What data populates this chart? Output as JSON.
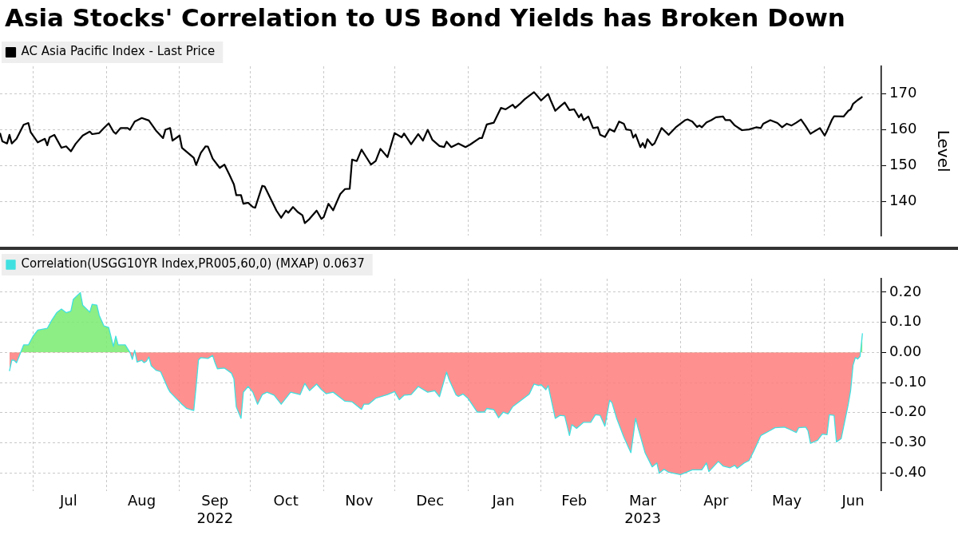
{
  "chart_data": [
    {
      "type": "line",
      "title": "Asia Stocks' Correlation to US Bond Yields has Broken Down",
      "ylabel": "Level",
      "legend": "top left",
      "grid": true,
      "marker": "none",
      "tick_labels": "y",
      "xlim": [
        "2022-06-17",
        "2023-06-25"
      ],
      "xticks": [
        {
          "value": "2022-07-01",
          "label": null
        },
        {
          "value": "2022-08-01",
          "label": null
        },
        {
          "value": "2022-09-01",
          "label": null
        },
        {
          "value": "2022-10-01",
          "label": null
        },
        {
          "value": "2022-11-01",
          "label": null
        },
        {
          "value": "2022-12-01",
          "label": null
        },
        {
          "value": "2023-01-01",
          "label": null
        },
        {
          "value": "2023-02-01",
          "label": null
        },
        {
          "value": "2023-03-01",
          "label": null
        },
        {
          "value": "2023-04-01",
          "label": null
        },
        {
          "value": "2023-05-01",
          "label": null
        },
        {
          "value": "2023-06-01",
          "label": null
        }
      ],
      "ylim": [
        130.5,
        177.7
      ],
      "yticks": [
        140,
        150,
        160,
        170
      ],
      "series": [
        {
          "name": "AC Asia Pacific Index - Last Price",
          "color": "#000000",
          "x": [
            "2022-06-17",
            "2022-06-18",
            "2022-06-20",
            "2022-06-21",
            "2022-06-22",
            "2022-06-24",
            "2022-06-27",
            "2022-06-29",
            "2022-06-30",
            "2022-07-03",
            "2022-07-06",
            "2022-07-07",
            "2022-07-08",
            "2022-07-10",
            "2022-07-13",
            "2022-07-15",
            "2022-07-17",
            "2022-07-19",
            "2022-07-22",
            "2022-07-25",
            "2022-07-26",
            "2022-07-29",
            "2022-07-31",
            "2022-08-02",
            "2022-08-04",
            "2022-08-05",
            "2022-08-07",
            "2022-08-10",
            "2022-08-11",
            "2022-08-13",
            "2022-08-16",
            "2022-08-19",
            "2022-08-22",
            "2022-08-25",
            "2022-08-26",
            "2022-08-28",
            "2022-08-29",
            "2022-09-01",
            "2022-09-02",
            "2022-09-07",
            "2022-09-08",
            "2022-09-10",
            "2022-09-12",
            "2022-09-13",
            "2022-09-15",
            "2022-09-18",
            "2022-09-20",
            "2022-09-22",
            "2022-09-24",
            "2022-09-25",
            "2022-09-27",
            "2022-09-28",
            "2022-09-30",
            "2022-10-02",
            "2022-10-03",
            "2022-10-06",
            "2022-10-07",
            "2022-10-12",
            "2022-10-14",
            "2022-10-16",
            "2022-10-17",
            "2022-10-19",
            "2022-10-21",
            "2022-10-23",
            "2022-10-24",
            "2022-10-26",
            "2022-10-29",
            "2022-10-31",
            "2022-11-01",
            "2022-11-03",
            "2022-11-05",
            "2022-11-08",
            "2022-11-10",
            "2022-11-12",
            "2022-11-13",
            "2022-11-15",
            "2022-11-17",
            "2022-11-19",
            "2022-11-21",
            "2022-11-23",
            "2022-11-25",
            "2022-11-28",
            "2022-12-01",
            "2022-12-04",
            "2022-12-05",
            "2022-12-08",
            "2022-12-11",
            "2022-12-13",
            "2022-12-15",
            "2022-12-17",
            "2022-12-20",
            "2022-12-22",
            "2022-12-23",
            "2022-12-25",
            "2022-12-28",
            "2022-12-31",
            "2023-01-02",
            "2023-01-06",
            "2023-01-07",
            "2023-01-09",
            "2023-01-12",
            "2023-01-15",
            "2023-01-17",
            "2023-01-20",
            "2023-01-21",
            "2023-01-23",
            "2023-01-25",
            "2023-01-29",
            "2023-02-01",
            "2023-02-04",
            "2023-02-05",
            "2023-02-07",
            "2023-02-09",
            "2023-02-11",
            "2023-02-13",
            "2023-02-15",
            "2023-02-17",
            "2023-02-18",
            "2023-02-19",
            "2023-02-21",
            "2023-02-23",
            "2023-02-25",
            "2023-02-26",
            "2023-02-28",
            "2023-03-02",
            "2023-03-04",
            "2023-03-06",
            "2023-03-08",
            "2023-03-09",
            "2023-03-11",
            "2023-03-12",
            "2023-03-13",
            "2023-03-15",
            "2023-03-16",
            "2023-03-17",
            "2023-03-18",
            "2023-03-20",
            "2023-03-21",
            "2023-03-24",
            "2023-03-27",
            "2023-03-30",
            "2023-04-03",
            "2023-04-04",
            "2023-04-06",
            "2023-04-08",
            "2023-04-09",
            "2023-04-10",
            "2023-04-12",
            "2023-04-14",
            "2023-04-16",
            "2023-04-19",
            "2023-04-20",
            "2023-04-22",
            "2023-04-24",
            "2023-04-27",
            "2023-04-30",
            "2023-05-03",
            "2023-05-05",
            "2023-05-06",
            "2023-05-09",
            "2023-05-12",
            "2023-05-14",
            "2023-05-16",
            "2023-05-18",
            "2023-05-20",
            "2023-05-22",
            "2023-05-24",
            "2023-05-26",
            "2023-05-30",
            "2023-06-01",
            "2023-06-02",
            "2023-06-04",
            "2023-06-05",
            "2023-06-09",
            "2023-06-11",
            "2023-06-12",
            "2023-06-13",
            "2023-06-15",
            "2023-06-17"
          ],
          "values": [
            159.1,
            156.8,
            156.2,
            158.6,
            156.2,
            157.5,
            161.4,
            161.9,
            159.3,
            156.5,
            157.5,
            155.7,
            157.9,
            158.6,
            155.0,
            155.4,
            154.0,
            156.1,
            158.4,
            159.5,
            158.8,
            159.1,
            160.5,
            161.8,
            159.5,
            158.9,
            160.5,
            160.5,
            160.0,
            162.3,
            163.3,
            162.6,
            159.8,
            157.7,
            160.0,
            160.5,
            157.0,
            158.4,
            155.0,
            152.2,
            150.2,
            153.6,
            155.4,
            155.3,
            152.0,
            149.4,
            150.3,
            147.6,
            144.8,
            141.8,
            141.8,
            139.4,
            139.7,
            138.5,
            138.3,
            144.4,
            144.2,
            137.5,
            135.5,
            137.5,
            136.9,
            138.5,
            137.1,
            136.2,
            134.0,
            135.2,
            137.5,
            135.2,
            135.7,
            139.4,
            137.6,
            142.1,
            143.5,
            143.6,
            151.7,
            151.3,
            154.5,
            152.4,
            150.3,
            151.3,
            154.7,
            152.4,
            159.1,
            157.9,
            159.0,
            156.0,
            158.8,
            157.0,
            160.0,
            157.2,
            155.5,
            155.2,
            156.7,
            155.2,
            156.2,
            155.2,
            155.9,
            157.7,
            157.7,
            161.5,
            162.0,
            166.1,
            165.7,
            167.0,
            166.1,
            167.2,
            168.5,
            170.5,
            168.2,
            170.0,
            168.3,
            165.3,
            166.5,
            167.6,
            165.5,
            165.7,
            163.5,
            164.4,
            162.7,
            163.7,
            160.5,
            160.7,
            158.6,
            158.0,
            160.2,
            159.5,
            162.3,
            161.7,
            160.1,
            159.9,
            157.8,
            158.7,
            155.2,
            156.3,
            155.0,
            157.4,
            155.7,
            156.2,
            160.5,
            158.6,
            160.7,
            162.7,
            162.9,
            162.3,
            160.8,
            161.2,
            160.7,
            162.1,
            162.7,
            163.5,
            163.7,
            162.7,
            162.7,
            161.2,
            159.9,
            160.1,
            160.7,
            160.5,
            161.7,
            162.7,
            161.9,
            160.7,
            161.7,
            161.2,
            162.0,
            162.9,
            161.0,
            158.9,
            160.5,
            158.4,
            159.7,
            162.7,
            163.8,
            163.7,
            165.3,
            165.7,
            167.2,
            168.3,
            169.2
          ]
        }
      ]
    },
    {
      "type": "area",
      "legend": "top left",
      "grid": true,
      "marker": "none",
      "xlim": [
        "2022-06-17",
        "2023-06-25"
      ],
      "xticks": [
        {
          "value": "2022-07-01",
          "label": null
        },
        {
          "value": "2022-08-01",
          "label": null
        },
        {
          "value": "2022-09-01",
          "label": null
        },
        {
          "value": "2022-10-01",
          "label": null
        },
        {
          "value": "2022-11-01",
          "label": null
        },
        {
          "value": "2022-12-01",
          "label": null
        },
        {
          "value": "2023-01-01",
          "label": null
        },
        {
          "value": "2023-02-01",
          "label": null
        },
        {
          "value": "2023-03-01",
          "label": null
        },
        {
          "value": "2023-04-01",
          "label": null
        },
        {
          "value": "2023-05-01",
          "label": null
        },
        {
          "value": "2023-06-01",
          "label": null
        },
        {
          "value": "2022-07-16",
          "label": "Jul"
        },
        {
          "value": "2022-08-16",
          "label": "Aug"
        },
        {
          "value": "2022-09-16",
          "label": "Sep\n2022"
        },
        {
          "value": "2022-10-16",
          "label": "Oct"
        },
        {
          "value": "2022-11-16",
          "label": "Nov"
        },
        {
          "value": "2022-12-16",
          "label": "Dec"
        },
        {
          "value": "2023-01-16",
          "label": "Jan"
        },
        {
          "value": "2023-02-15",
          "label": "Feb"
        },
        {
          "value": "2023-03-16",
          "label": "Mar\n2023"
        },
        {
          "value": "2023-04-16",
          "label": "Apr"
        },
        {
          "value": "2023-05-16",
          "label": "May"
        },
        {
          "value": "2023-06-13",
          "label": "Jun"
        }
      ],
      "ylim": [
        -0.46,
        0.245
      ],
      "yticks": [
        {
          "value": 0.2,
          "label": "0.20"
        },
        {
          "value": 0.1,
          "label": "0.10"
        },
        {
          "value": 0,
          "label": "0.00"
        },
        {
          "value": -0.1,
          "label": "-0.10"
        },
        {
          "value": -0.2,
          "label": "-0.20"
        },
        {
          "value": -0.3,
          "label": "-0.30"
        },
        {
          "value": -0.4,
          "label": "-0.40"
        }
      ],
      "series": [
        {
          "name": "Correlation(USGG10YR Index,PR005,60,0) (MXAP) 0.0637",
          "color": "#40e0e0",
          "x": [
            "2022-06-21",
            "2022-06-22",
            "2022-06-23",
            "2022-06-24",
            "2022-06-25",
            "2022-06-27",
            "2022-06-29",
            "2022-07-01",
            "2022-07-03",
            "2022-07-07",
            "2022-07-09",
            "2022-07-11",
            "2022-07-13",
            "2022-07-15",
            "2022-07-17",
            "2022-07-18",
            "2022-07-21",
            "2022-07-22",
            "2022-07-25",
            "2022-07-26",
            "2022-07-28",
            "2022-07-29",
            "2022-07-31",
            "2022-08-02",
            "2022-08-04",
            "2022-08-05",
            "2022-08-06",
            "2022-08-09",
            "2022-08-11",
            "2022-08-12",
            "2022-08-13",
            "2022-08-14",
            "2022-08-16",
            "2022-08-17",
            "2022-08-18",
            "2022-08-19",
            "2022-08-20",
            "2022-08-22",
            "2022-08-24",
            "2022-08-27",
            "2022-08-28",
            "2022-09-02",
            "2022-09-04",
            "2022-09-07",
            "2022-09-08",
            "2022-09-09",
            "2022-09-10",
            "2022-09-13",
            "2022-09-15",
            "2022-09-16",
            "2022-09-17",
            "2022-09-20",
            "2022-09-23",
            "2022-09-24",
            "2022-09-25",
            "2022-09-27",
            "2022-09-28",
            "2022-09-30",
            "2022-10-02",
            "2022-10-04",
            "2022-10-06",
            "2022-10-08",
            "2022-10-11",
            "2022-10-14",
            "2022-10-18",
            "2022-10-22",
            "2022-10-24",
            "2022-10-26",
            "2022-10-29",
            "2022-10-31",
            "2022-11-02",
            "2022-11-05",
            "2022-11-10",
            "2022-11-13",
            "2022-11-17",
            "2022-11-18",
            "2022-11-20",
            "2022-11-23",
            "2022-11-28",
            "2022-12-01",
            "2022-12-03",
            "2022-12-05",
            "2022-12-08",
            "2022-12-11",
            "2022-12-15",
            "2022-12-18",
            "2022-12-20",
            "2022-12-23",
            "2022-12-24",
            "2022-12-27",
            "2022-12-28",
            "2022-12-30",
            "2023-01-01",
            "2023-01-05",
            "2023-01-08",
            "2023-01-09",
            "2023-01-12",
            "2023-01-14",
            "2023-01-16",
            "2023-01-18",
            "2023-01-20",
            "2023-01-23",
            "2023-01-27",
            "2023-01-29",
            "2023-01-31",
            "2023-02-01",
            "2023-02-03",
            "2023-02-04",
            "2023-02-07",
            "2023-02-09",
            "2023-02-11",
            "2023-02-13",
            "2023-02-14",
            "2023-02-16",
            "2023-02-19",
            "2023-02-22",
            "2023-02-24",
            "2023-02-26",
            "2023-02-28",
            "2023-03-02",
            "2023-03-03",
            "2023-03-05",
            "2023-03-08",
            "2023-03-11",
            "2023-03-13",
            "2023-03-14",
            "2023-03-17",
            "2023-03-20",
            "2023-03-22",
            "2023-03-23",
            "2023-03-25",
            "2023-03-27",
            "2023-04-01",
            "2023-04-06",
            "2023-04-10",
            "2023-04-12",
            "2023-04-13",
            "2023-04-17",
            "2023-04-19",
            "2023-04-22",
            "2023-04-24",
            "2023-04-25",
            "2023-04-28",
            "2023-04-30",
            "2023-05-02",
            "2023-05-05",
            "2023-05-09",
            "2023-05-11",
            "2023-05-15",
            "2023-05-17",
            "2023-05-20",
            "2023-05-21",
            "2023-05-24",
            "2023-05-25",
            "2023-05-26",
            "2023-05-29",
            "2023-05-31",
            "2023-06-02",
            "2023-06-03",
            "2023-06-05",
            "2023-06-06",
            "2023-06-08",
            "2023-06-11",
            "2023-06-12",
            "2023-06-13",
            "2023-06-14",
            "2023-06-15",
            "2023-06-16",
            "2023-06-17"
          ],
          "values": [
            -0.062,
            -0.025,
            -0.026,
            -0.034,
            -0.015,
            0.025,
            0.025,
            0.054,
            0.074,
            0.08,
            0.108,
            0.132,
            0.144,
            0.132,
            0.137,
            0.176,
            0.199,
            0.157,
            0.134,
            0.16,
            0.157,
            0.123,
            0.088,
            0.083,
            0.02,
            0.054,
            0.025,
            0.025,
            0,
            -0.023,
            0.007,
            -0.032,
            -0.026,
            -0.034,
            -0.029,
            -0.015,
            -0.044,
            -0.059,
            -0.064,
            -0.118,
            -0.132,
            -0.172,
            -0.186,
            -0.193,
            -0.113,
            -0.025,
            -0.017,
            -0.02,
            -0.01,
            -0.034,
            -0.054,
            -0.052,
            -0.069,
            -0.088,
            -0.181,
            -0.219,
            -0.132,
            -0.113,
            -0.132,
            -0.172,
            -0.14,
            -0.132,
            -0.142,
            -0.172,
            -0.132,
            -0.14,
            -0.103,
            -0.127,
            -0.105,
            -0.123,
            -0.137,
            -0.132,
            -0.162,
            -0.164,
            -0.189,
            -0.172,
            -0.172,
            -0.152,
            -0.14,
            -0.13,
            -0.157,
            -0.142,
            -0.14,
            -0.113,
            -0.132,
            -0.127,
            -0.147,
            -0.065,
            -0.089,
            -0.141,
            -0.146,
            -0.138,
            -0.152,
            -0.198,
            -0.198,
            -0.186,
            -0.19,
            -0.217,
            -0.198,
            -0.204,
            -0.18,
            -0.162,
            -0.138,
            -0.105,
            -0.11,
            -0.107,
            -0.124,
            -0.11,
            -0.219,
            -0.209,
            -0.211,
            -0.276,
            -0.24,
            -0.252,
            -0.232,
            -0.232,
            -0.207,
            -0.209,
            -0.245,
            -0.159,
            -0.167,
            -0.219,
            -0.281,
            -0.333,
            -0.219,
            -0.25,
            -0.333,
            -0.38,
            -0.367,
            -0.401,
            -0.388,
            -0.398,
            -0.406,
            -0.39,
            -0.39,
            -0.367,
            -0.396,
            -0.362,
            -0.377,
            -0.383,
            -0.375,
            -0.385,
            -0.367,
            -0.359,
            -0.328,
            -0.276,
            -0.259,
            -0.25,
            -0.248,
            -0.255,
            -0.266,
            -0.25,
            -0.248,
            -0.261,
            -0.302,
            -0.292,
            -0.271,
            -0.273,
            -0.207,
            -0.209,
            -0.297,
            -0.286,
            -0.172,
            -0.126,
            -0.043,
            -0.017,
            -0.022,
            -0.013,
            0.0637
          ]
        }
      ]
    }
  ]
}
